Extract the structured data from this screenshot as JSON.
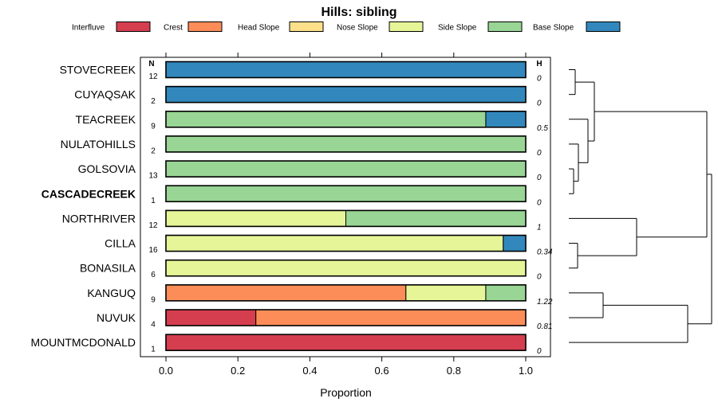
{
  "chart_data": {
    "type": "bar",
    "orientation": "horizontal-stacked",
    "title": "Hills: sibling",
    "xlabel": "Proportion",
    "ylabel": "",
    "xlim": [
      0,
      1
    ],
    "xticks": [
      "0.0",
      "0.2",
      "0.4",
      "0.6",
      "0.8",
      "1.0"
    ],
    "legend": {
      "placement": "top",
      "entries": [
        {
          "name": "Interfluve",
          "color": "#d53e4f"
        },
        {
          "name": "Crest",
          "color": "#fc8d59"
        },
        {
          "name": "Head Slope",
          "color": "#fee08b"
        },
        {
          "name": "Nose Slope",
          "color": "#e6f598"
        },
        {
          "name": "Side Slope",
          "color": "#99d594"
        },
        {
          "name": "Base Slope",
          "color": "#3288bd"
        }
      ]
    },
    "n_header": "N",
    "h_header": "H",
    "highlight": "CASCADECREEK",
    "categories": [
      "STOVECREEK",
      "CUYAQSAK",
      "TEACREEK",
      "NULATOHILLS",
      "GOLSOVIA",
      "CASCADECREEK",
      "NORTHRIVER",
      "CILLA",
      "BONASILA",
      "KANGUQ",
      "NUVUK",
      "MOUNTMCDONALD"
    ],
    "n": [
      "12",
      "2",
      "9",
      "2",
      "13",
      "1",
      "12",
      "16",
      "6",
      "9",
      "4",
      "1"
    ],
    "h": [
      "0",
      "0",
      "0.5",
      "0",
      "0",
      "0",
      "1",
      "0.34",
      "0",
      "1.22",
      "0.81",
      "0"
    ],
    "series": [
      {
        "name": "Interfluve",
        "values": [
          0,
          0,
          0,
          0,
          0,
          0,
          0,
          0,
          0,
          0,
          0.25,
          1
        ]
      },
      {
        "name": "Crest",
        "values": [
          0,
          0,
          0,
          0,
          0,
          0,
          0,
          0,
          0,
          0.667,
          0.75,
          0
        ]
      },
      {
        "name": "Head Slope",
        "values": [
          0,
          0,
          0,
          0,
          0,
          0,
          0,
          0,
          0,
          0,
          0,
          0
        ]
      },
      {
        "name": "Nose Slope",
        "values": [
          0,
          0,
          0,
          0,
          0,
          0,
          0.5,
          0.9375,
          1,
          0.222,
          0,
          0
        ]
      },
      {
        "name": "Side Slope",
        "values": [
          0,
          0,
          0.889,
          1,
          1,
          1,
          0.5,
          0,
          0,
          0.111,
          0,
          0
        ]
      },
      {
        "name": "Base Slope",
        "values": [
          1,
          1,
          0.111,
          0,
          0,
          0,
          0,
          0.0625,
          0,
          0,
          0,
          0
        ]
      }
    ]
  }
}
